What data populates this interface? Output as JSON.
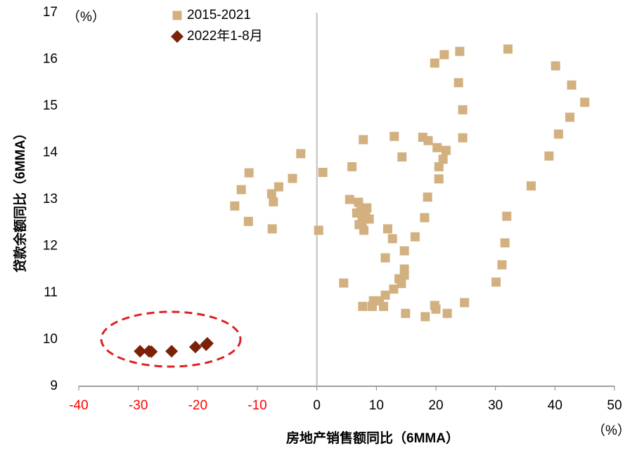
{
  "chart_data": {
    "type": "scatter",
    "x_label": "房地产销售额同比（6MMA）",
    "y_label": "贷款余额同比（6MMA）",
    "y_unit": "（%）",
    "x_unit": "（%）",
    "xlim": [
      -40,
      50
    ],
    "xticks": [
      -40,
      -30,
      -20,
      -10,
      0,
      10,
      20,
      30,
      40,
      50
    ],
    "ylim": [
      9,
      17
    ],
    "yticks": [
      9,
      10,
      11,
      12,
      13,
      14,
      15,
      16,
      17
    ],
    "negative_xtick_color": "#ff0000",
    "zero_line_color": "#bfbfbf",
    "series": [
      {
        "name": "2015-2021",
        "color": "#d2b07f",
        "marker": "square",
        "x": [
          32.1,
          24.0,
          21.4,
          19.8,
          40.1,
          42.8,
          23.8,
          45.0,
          24.5,
          42.5,
          40.6,
          24.5,
          13.0,
          17.8,
          18.7,
          7.8,
          20.2,
          21.7,
          21.2,
          39.0,
          20.5,
          14.3,
          -2.7,
          5.9,
          1.0,
          -11.4,
          20.5,
          -4.1,
          -12.7,
          -6.4,
          36.0,
          -7.6,
          -7.3,
          -13.8,
          5.5,
          18.6,
          7.0,
          7.4,
          8.4,
          6.7,
          8.2,
          31.9,
          18.1,
          8.8,
          7.6,
          -11.5,
          7.1,
          -7.5,
          0.3,
          7.9,
          11.9,
          16.5,
          12.7,
          31.6,
          14.7,
          11.5,
          31.1,
          14.7,
          14.7,
          13.8,
          14.2,
          4.5,
          30.1,
          12.9,
          11.5,
          10.5,
          9.5,
          19.8,
          24.8,
          7.7,
          9.3,
          11.2,
          20.0,
          14.9,
          21.9,
          18.2
        ],
        "y": [
          16.22,
          16.17,
          16.1,
          15.92,
          15.86,
          15.45,
          15.5,
          15.08,
          14.92,
          14.76,
          14.4,
          14.32,
          14.35,
          14.33,
          14.26,
          14.28,
          14.11,
          14.05,
          13.86,
          13.93,
          13.7,
          13.91,
          13.98,
          13.7,
          13.58,
          13.57,
          13.44,
          13.45,
          13.21,
          13.27,
          13.29,
          13.12,
          12.95,
          12.86,
          13.0,
          13.05,
          12.94,
          12.82,
          12.82,
          12.71,
          12.67,
          12.64,
          12.61,
          12.58,
          12.53,
          12.53,
          12.46,
          12.37,
          12.34,
          12.34,
          12.37,
          12.2,
          12.16,
          12.07,
          11.9,
          11.75,
          11.6,
          11.51,
          11.38,
          11.3,
          11.2,
          11.21,
          11.23,
          11.08,
          10.95,
          10.83,
          10.83,
          10.73,
          10.79,
          10.71,
          10.71,
          10.71,
          10.65,
          10.56,
          10.56,
          10.49
        ]
      },
      {
        "name": "2022年1-8月",
        "color": "#7b2108",
        "marker": "diamond",
        "x": [
          -29.7,
          -28.2,
          -27.8,
          -24.4,
          -20.4,
          -18.6,
          -18.4
        ],
        "y": [
          9.75,
          9.75,
          9.74,
          9.75,
          9.84,
          9.89,
          9.92
        ]
      }
    ]
  }
}
